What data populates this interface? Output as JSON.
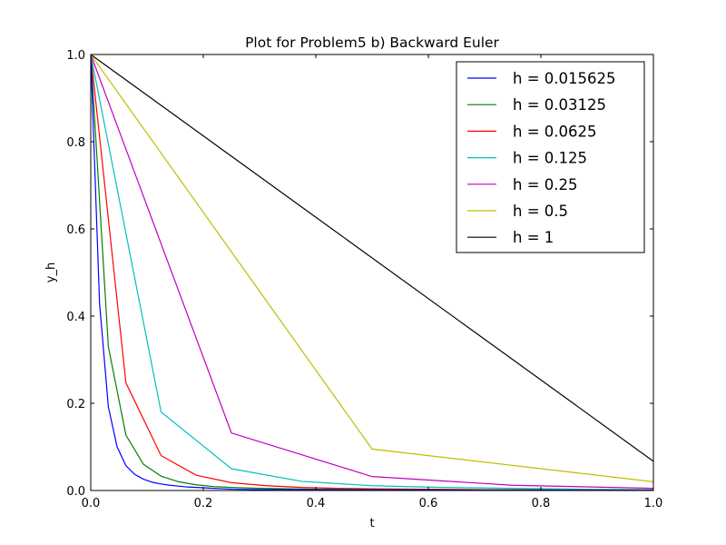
{
  "chart_data": {
    "type": "line",
    "title": "Plot for Problem5 b) Backward Euler",
    "xlabel": "t",
    "ylabel": "y_h",
    "xlim": [
      0.0,
      1.0
    ],
    "ylim": [
      0.0,
      1.0
    ],
    "xticks": [
      "0.0",
      "0.2",
      "0.4",
      "0.6",
      "0.8",
      "1.0"
    ],
    "yticks": [
      "0.0",
      "0.2",
      "0.4",
      "0.6",
      "0.8",
      "1.0"
    ],
    "grid": false,
    "legend_position": "top-right",
    "series": [
      {
        "name": "h = 0.015625",
        "color": "#0000ff",
        "x": [
          0,
          0.015625,
          0.03125,
          0.046875,
          0.0625,
          0.078125,
          0.09375,
          0.109375,
          0.125,
          0.140625,
          0.15625,
          0.171875,
          0.1875,
          0.203125,
          0.21875,
          0.234375,
          0.25,
          0.3,
          0.4,
          0.5,
          0.6,
          0.7,
          0.8,
          0.9,
          1.0
        ],
        "y": [
          1.0,
          0.43,
          0.192,
          0.1,
          0.057,
          0.037,
          0.026,
          0.019,
          0.015,
          0.012,
          0.01,
          0.008,
          0.007,
          0.006,
          0.005,
          0.004,
          0.003,
          0.002,
          0.0015,
          0.001,
          0.001,
          0.0005,
          0.0005,
          0.0003,
          0.0002
        ]
      },
      {
        "name": "h = 0.03125",
        "color": "#008000",
        "x": [
          0,
          0.03125,
          0.0625,
          0.09375,
          0.125,
          0.15625,
          0.1875,
          0.21875,
          0.25,
          0.3,
          0.4,
          0.5,
          0.6,
          0.7,
          0.8,
          0.9,
          1.0
        ],
        "y": [
          1.0,
          0.33,
          0.127,
          0.06,
          0.033,
          0.02,
          0.013,
          0.009,
          0.007,
          0.005,
          0.003,
          0.002,
          0.0015,
          0.001,
          0.001,
          0.0005,
          0.0003
        ]
      },
      {
        "name": "h = 0.0625",
        "color": "#ff0000",
        "x": [
          0,
          0.0625,
          0.125,
          0.1875,
          0.25,
          0.3125,
          0.375,
          0.4375,
          0.5,
          0.6,
          0.7,
          0.8,
          0.9,
          1.0
        ],
        "y": [
          1.0,
          0.247,
          0.08,
          0.035,
          0.018,
          0.011,
          0.007,
          0.005,
          0.004,
          0.003,
          0.002,
          0.0015,
          0.001,
          0.0008
        ]
      },
      {
        "name": "h = 0.125",
        "color": "#00bfbf",
        "x": [
          0,
          0.125,
          0.25,
          0.375,
          0.5,
          0.625,
          0.75,
          0.875,
          1.0
        ],
        "y": [
          1.0,
          0.18,
          0.05,
          0.021,
          0.011,
          0.007,
          0.005,
          0.003,
          0.002
        ]
      },
      {
        "name": "h = 0.25",
        "color": "#bf00bf",
        "x": [
          0,
          0.25,
          0.5,
          0.75,
          1.0
        ],
        "y": [
          1.0,
          0.132,
          0.032,
          0.012,
          0.005
        ]
      },
      {
        "name": "h = 0.5",
        "color": "#bfbf00",
        "x": [
          0,
          0.5,
          1.0
        ],
        "y": [
          1.0,
          0.095,
          0.02
        ]
      },
      {
        "name": "h = 1",
        "color": "#000000",
        "x": [
          0,
          1.0
        ],
        "y": [
          1.0,
          0.067
        ]
      }
    ]
  }
}
